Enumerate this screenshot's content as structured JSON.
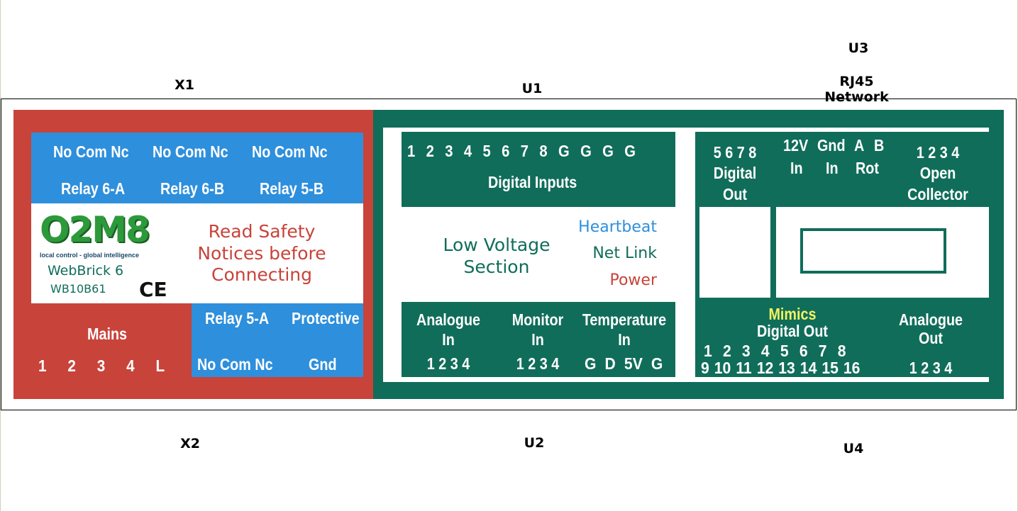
{
  "labels": {
    "x1": "X1",
    "x2": "X2",
    "u1": "U1",
    "u2": "U2",
    "u3": "U3",
    "u4": "U4",
    "rj45_line1": "RJ45",
    "rj45_line2": "Network"
  },
  "relays_top": {
    "terminals": [
      "No Com Nc",
      "No Com Nc",
      "No Com Nc"
    ],
    "names": [
      "Relay 6-A",
      "Relay 6-B",
      "Relay 5-B"
    ]
  },
  "logo": {
    "brand": "O2M8",
    "tagline": "local control - global intelligence",
    "product": "WebBrick 6",
    "model": "WB10B61",
    "ce_mark": "CE"
  },
  "safety_notice": [
    "Read Safety",
    "Notices before",
    "Connecting"
  ],
  "mains": {
    "title": "Mains",
    "terminals": [
      "1",
      "2",
      "3",
      "4",
      "L"
    ]
  },
  "relay_5a": {
    "name": "Relay 5-A",
    "terminals": "No Com Nc"
  },
  "protective": {
    "line1": "Protective",
    "line2": "Gnd"
  },
  "digital_inputs": {
    "numbers": [
      "1",
      "2",
      "3",
      "4",
      "5",
      "6",
      "7",
      "8",
      "G",
      "G",
      "G",
      "G"
    ],
    "title": "Digital Inputs"
  },
  "low_voltage": {
    "line1": "Low Voltage",
    "line2": "Section"
  },
  "status": {
    "heartbeat": "Heartbeat",
    "net_link": "Net Link",
    "power": "Power",
    "colors": {
      "heartbeat": "#2e8fdc",
      "net_link": "#106d5a",
      "power": "#c8433a"
    }
  },
  "analogue_in": {
    "line1": "Analogue",
    "line2": "In",
    "numbers": "1 2 3 4"
  },
  "monitor_in": {
    "line1": "Monitor",
    "line2": "In",
    "numbers": "1 2 3 4"
  },
  "temperature_in": {
    "line1": "Temperature",
    "line2": "In",
    "pins": [
      "G",
      "D",
      "5V",
      "G"
    ]
  },
  "digital_out_top": {
    "numbers": "5 6 7 8",
    "line1": "Digital",
    "line2": "Out"
  },
  "power_inputs": {
    "row1": [
      "12V",
      "Gnd",
      "A",
      "B"
    ],
    "row2": [
      "In",
      "In",
      "Rot"
    ]
  },
  "open_collector": {
    "numbers": "1 2 3 4",
    "line1": "Open",
    "line2": "Collector"
  },
  "mimics": {
    "title": "Mimics",
    "subtitle": "Digital Out",
    "mimic_numbers": [
      "1",
      "2",
      "3",
      "4",
      "5",
      "6",
      "7",
      "8"
    ],
    "out_numbers": [
      "9",
      "10",
      "11",
      "12",
      "13",
      "14",
      "15",
      "16"
    ]
  },
  "analogue_out": {
    "line1": "Analogue",
    "line2": "Out",
    "numbers": "1 2 3 4"
  }
}
